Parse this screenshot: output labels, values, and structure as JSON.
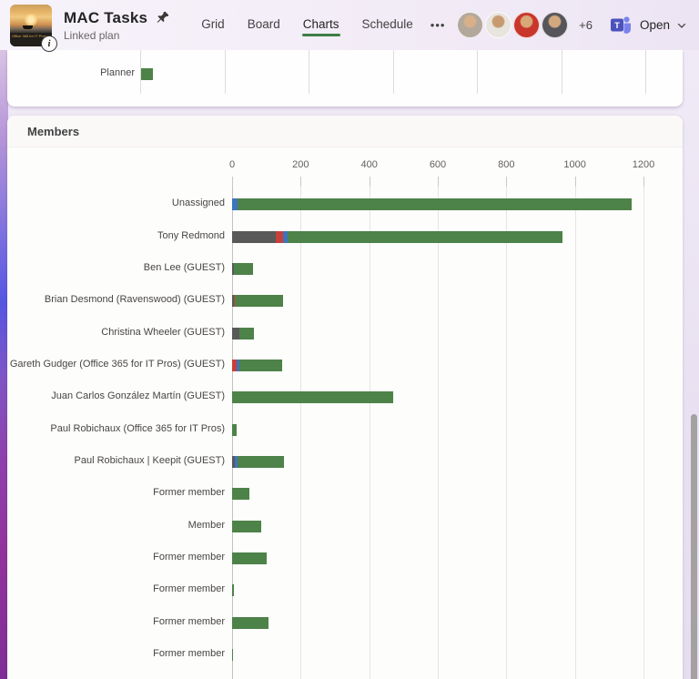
{
  "header": {
    "title": "MAC Tasks",
    "subtitle": "Linked plan",
    "thumbnail_caption": "Office 365 for IT Pros",
    "info_glyph": "i",
    "tabs": [
      {
        "label": "Grid",
        "active": false
      },
      {
        "label": "Board",
        "active": false
      },
      {
        "label": "Charts",
        "active": true
      },
      {
        "label": "Schedule",
        "active": false
      }
    ],
    "more_label": "•••",
    "avatars": [
      {
        "bg": "#b3a89c",
        "skin": "#d7b08a"
      },
      {
        "bg": "#e8e4de",
        "skin": "#c79a6f"
      },
      {
        "bg": "#c8362c",
        "skin": "#d8a878"
      },
      {
        "bg": "#57555c",
        "skin": "#d2a97e"
      }
    ],
    "overflow_count": "+6",
    "open_label": "Open",
    "accent_green": "#3f7d45"
  },
  "members_section": {
    "title": "Members"
  },
  "chart_data": [
    {
      "type": "bar",
      "title": "",
      "orientation": "horizontal",
      "categories": [
        "Planner"
      ],
      "values": [
        56
      ],
      "xlim": [
        0,
        2400
      ],
      "gridline_step": 400,
      "grid": true,
      "bar_color": "#4d8248",
      "note_axis_labels_visible": false
    },
    {
      "type": "bar",
      "title": "Members",
      "orientation": "horizontal",
      "stacked": true,
      "grid": true,
      "xlim": [
        0,
        1200
      ],
      "xticks": [
        0,
        200,
        400,
        600,
        800,
        1000,
        1200
      ],
      "categories": [
        "Unassigned",
        "Tony Redmond",
        "Ben Lee (GUEST)",
        "Brian Desmond (Ravenswood) (GUEST)",
        "Christina Wheeler (GUEST)",
        "Gareth Gudger (Office 365 for IT Pros) (GUEST)",
        "Juan Carlos González Martín (GUEST)",
        "Paul Robichaux (Office 365 for IT Pros)",
        "Paul Robichaux | Keepit (GUEST)",
        "Former member",
        "Member",
        "Former member",
        "Former member",
        "Former member",
        "Former member"
      ],
      "series": [
        {
          "name": "gray",
          "color": "#595959",
          "values": [
            0,
            127,
            5,
            4,
            22,
            0,
            0,
            0,
            8,
            0,
            0,
            0,
            0,
            0,
            0
          ]
        },
        {
          "name": "red",
          "color": "#c74038",
          "values": [
            0,
            21,
            0,
            3,
            0,
            13,
            0,
            0,
            0,
            0,
            0,
            0,
            0,
            0,
            0
          ]
        },
        {
          "name": "blue",
          "color": "#3e73bf",
          "values": [
            15,
            13,
            0,
            0,
            0,
            7,
            0,
            0,
            8,
            0,
            0,
            0,
            0,
            0,
            0
          ]
        },
        {
          "name": "green",
          "color": "#4d8248",
          "values": [
            1150,
            803,
            55,
            143,
            41,
            126,
            470,
            12,
            135,
            50,
            85,
            100,
            5,
            105,
            3
          ]
        }
      ]
    }
  ]
}
